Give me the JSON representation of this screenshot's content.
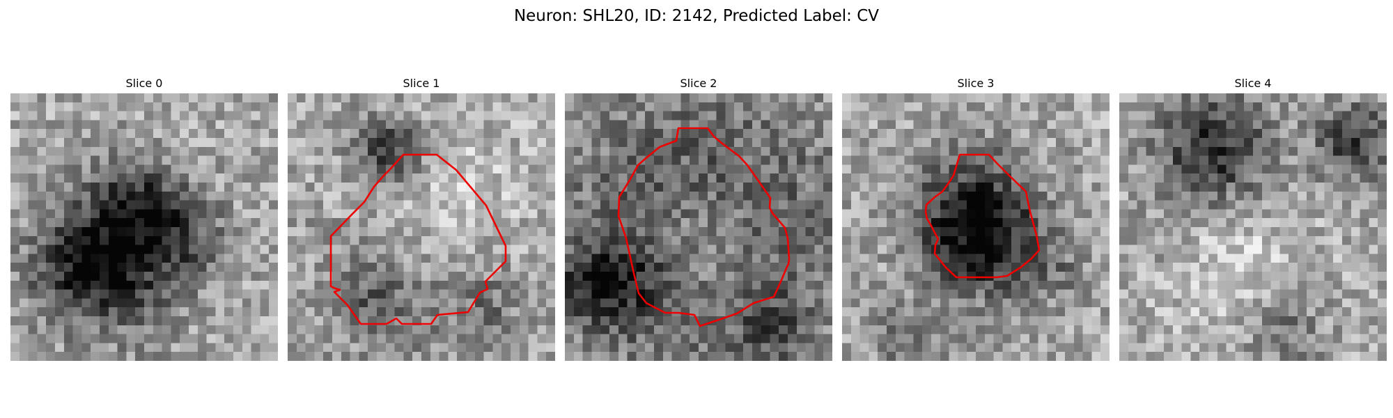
{
  "figure": {
    "title": "Neuron: SHL20, ID: 2142, Predicted Label: CV",
    "contour_color": "#ee0000",
    "colormap": "gray",
    "panels": [
      {
        "title": "Slice 0",
        "has_contour": false
      },
      {
        "title": "Slice 1",
        "has_contour": true
      },
      {
        "title": "Slice 2",
        "has_contour": true
      },
      {
        "title": "Slice 3",
        "has_contour": true
      },
      {
        "title": "Slice 4",
        "has_contour": false
      }
    ]
  }
}
